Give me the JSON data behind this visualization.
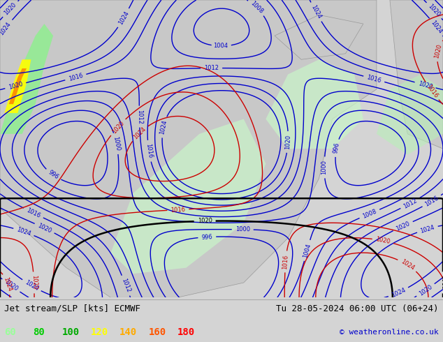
{
  "title_left": "Jet stream/SLP [kts] ECMWF",
  "title_right": "Tu 28-05-2024 06:00 UTC (06+24)",
  "copyright": "© weatheronline.co.uk",
  "legend_values": [
    "60",
    "80",
    "100",
    "120",
    "140",
    "160",
    "180"
  ],
  "legend_colors": [
    "#99ff99",
    "#00cc00",
    "#00aa00",
    "#ffff00",
    "#ffaa00",
    "#ff5500",
    "#ff0000"
  ],
  "bg_color": "#d4d4d4",
  "map_bg": "#e8e8e8",
  "bottom_bar_color": "#f0f0f0",
  "fig_width": 6.34,
  "fig_height": 4.9,
  "dpi": 100,
  "label_fontsize": 9,
  "legend_fontsize": 10,
  "copyright_fontsize": 8,
  "jet_colors": {
    "60": "#aaffaa",
    "80": "#55cc55",
    "100": "#00aa00",
    "120": "#ffff00",
    "140": "#ffaa00",
    "160": "#ff5500",
    "180": "#cc0000"
  },
  "slp_contour_color_blue": "#0000cc",
  "slp_contour_color_red": "#cc0000",
  "slp_contour_color_black": "#000000",
  "land_color": "#c8c8c8",
  "sea_color": "#b0c4de",
  "green_fill": "#90ee90",
  "yellow_fill": "#ffff00",
  "map_green_light": "#ccffcc",
  "map_green_mid": "#99ee99",
  "annotation_text_color": "#000000"
}
